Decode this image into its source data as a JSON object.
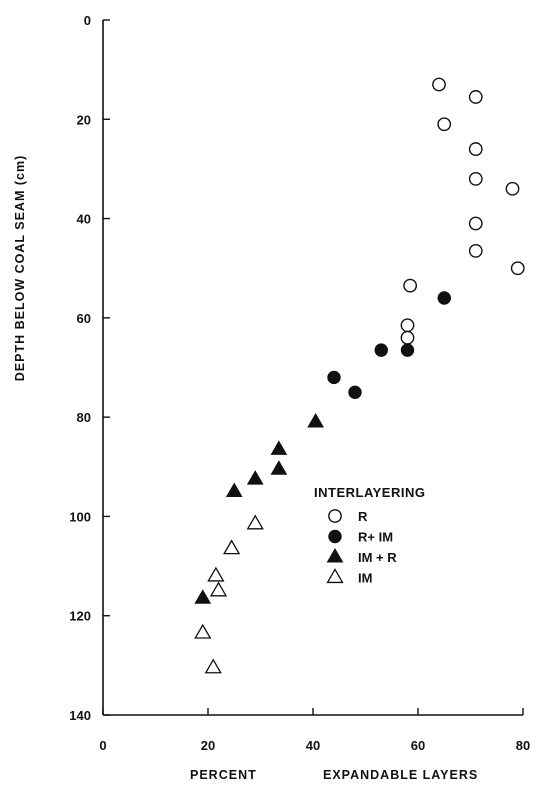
{
  "chart_data": {
    "type": "scatter",
    "xlabel_left": "PERCENT",
    "xlabel_right": "EXPANDABLE LAYERS",
    "ylabel": "DEPTH BELOW COAL SEAM (cm)",
    "xlim": [
      0,
      80
    ],
    "ylim": [
      0,
      140
    ],
    "y_inverted": true,
    "x_ticks": [
      0,
      20,
      40,
      60,
      80
    ],
    "y_ticks": [
      0,
      20,
      40,
      60,
      80,
      100,
      120,
      140
    ],
    "legend": {
      "title": "INTERLAYERING",
      "placement": "center-right"
    },
    "series": [
      {
        "name": "R",
        "marker": "open-circle",
        "points": [
          [
            64,
            13
          ],
          [
            71,
            15.5
          ],
          [
            65,
            21
          ],
          [
            71,
            26
          ],
          [
            71,
            32
          ],
          [
            78,
            34
          ],
          [
            71,
            41
          ],
          [
            71,
            46.5
          ],
          [
            79,
            50
          ],
          [
            58.5,
            53.5
          ],
          [
            58,
            61.5
          ],
          [
            58,
            64
          ]
        ]
      },
      {
        "name": "R+ IM",
        "marker": "filled-circle",
        "points": [
          [
            65,
            56
          ],
          [
            58,
            66.5
          ],
          [
            53,
            66.5
          ],
          [
            44,
            72
          ],
          [
            48,
            75
          ]
        ]
      },
      {
        "name": "IM + R",
        "marker": "filled-triangle",
        "points": [
          [
            40.5,
            81
          ],
          [
            33.5,
            86.5
          ],
          [
            33.5,
            90.5
          ],
          [
            29,
            92.5
          ],
          [
            25,
            95
          ],
          [
            19,
            116.5
          ]
        ]
      },
      {
        "name": "IM",
        "marker": "open-triangle",
        "points": [
          [
            29,
            101.5
          ],
          [
            24.5,
            106.5
          ],
          [
            21.5,
            112
          ],
          [
            22,
            115
          ],
          [
            19,
            123.5
          ],
          [
            21,
            130.5
          ]
        ]
      }
    ]
  }
}
